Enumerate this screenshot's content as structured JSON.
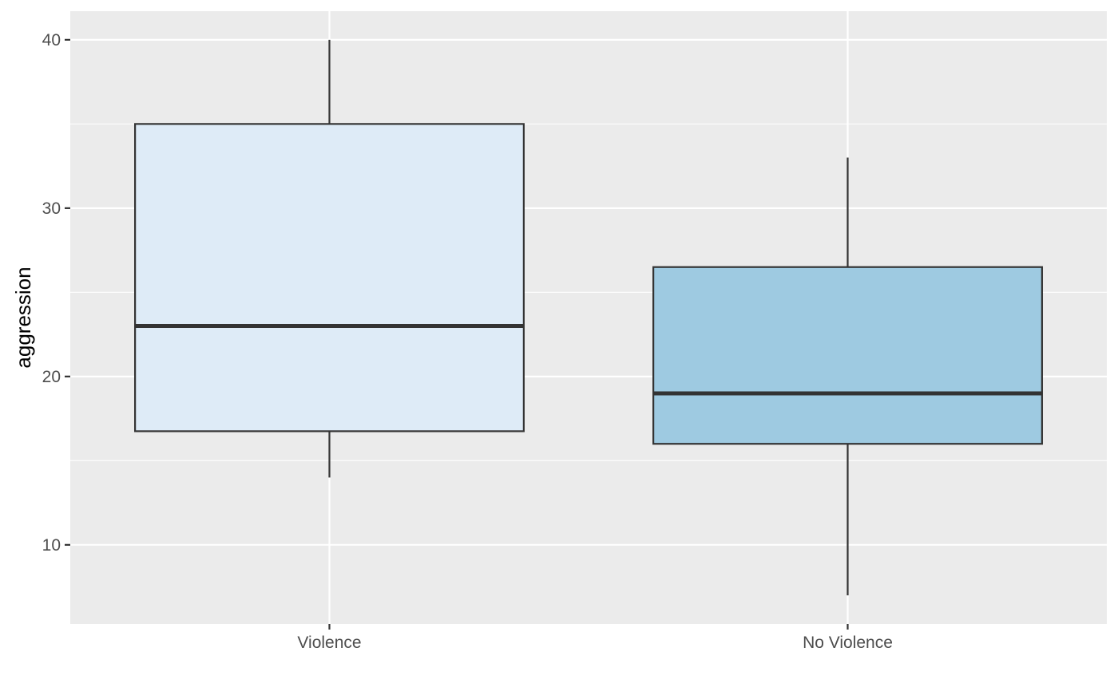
{
  "chart_data": {
    "type": "boxplot",
    "title": "",
    "xlabel": "",
    "ylabel": "aggression",
    "ylim": [
      5.3,
      41.7
    ],
    "yticks": [
      10,
      20,
      30,
      40
    ],
    "ytick_labels": [
      "10",
      "20",
      "30",
      "40"
    ],
    "grid": true,
    "categories": [
      "Violence",
      "No Violence"
    ],
    "boxes": [
      {
        "category": "Violence",
        "min": 14,
        "q1": 16.75,
        "median": 23,
        "q3": 35,
        "max": 40,
        "fill": "#deebf7"
      },
      {
        "category": "No Violence",
        "min": 7,
        "q1": 16,
        "median": 19,
        "q3": 26.5,
        "max": 33,
        "fill": "#9ecae1"
      }
    ]
  },
  "colors": {
    "panel_background": "#ebebeb",
    "grid": "#ffffff",
    "box_outline": "#333333",
    "tick_mark": "#333333"
  }
}
